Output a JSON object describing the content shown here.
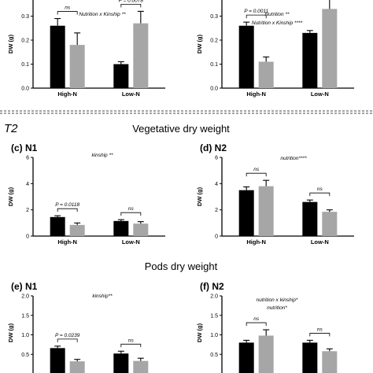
{
  "time_label": "T2",
  "section_titles": [
    "Vegetative dry weight",
    "Pods dry weight"
  ],
  "chart_data": [
    {
      "id": "a",
      "type": "bar",
      "label": "(a) N1",
      "label_visible": false,
      "ylabel": "DW (g)",
      "ylim": [
        0,
        0.4
      ],
      "yticks": [
        "0.0",
        "0.1",
        "0.2",
        "0.3",
        "0.4"
      ],
      "categories": [
        "High-N",
        "Low-N"
      ],
      "series": [
        {
          "color": "#000000",
          "values": [
            0.26,
            0.1
          ],
          "errors": [
            0.03,
            0.01
          ]
        },
        {
          "color": "#a6a6a6",
          "values": [
            0.18,
            0.27
          ],
          "errors": [
            0.05,
            0.05
          ]
        }
      ],
      "stats": [
        "Nutrition x Kinship **"
      ],
      "comparisons": [
        "ns",
        "P = 0.0078"
      ]
    },
    {
      "id": "b",
      "type": "bar",
      "label": "(b) N2",
      "label_visible": false,
      "ylabel": "DW (g)",
      "ylim": [
        0,
        0.4
      ],
      "yticks": [
        "0.0",
        "0.1",
        "0.2",
        "0.3",
        "0.4"
      ],
      "categories": [
        "High-N",
        "Low-N"
      ],
      "series": [
        {
          "color": "#000000",
          "values": [
            0.26,
            0.23
          ],
          "errors": [
            0.015,
            0.01
          ]
        },
        {
          "color": "#a6a6a6",
          "values": [
            0.11,
            0.33
          ],
          "errors": [
            0.02,
            0.05
          ]
        }
      ],
      "stats": [
        "Nutrition **",
        "Nutrition x Kinship ****"
      ],
      "comparisons": [
        "P = 0.0011",
        "P = 0.0358"
      ]
    },
    {
      "id": "c",
      "type": "bar",
      "label": "(c) N1",
      "ylabel": "DW (g)",
      "ylim": [
        0,
        6
      ],
      "yticks": [
        "0",
        "2",
        "4",
        "6"
      ],
      "categories": [
        "High-N",
        "Low-N"
      ],
      "series": [
        {
          "color": "#000000",
          "values": [
            1.45,
            1.15
          ],
          "errors": [
            0.1,
            0.1
          ]
        },
        {
          "color": "#a6a6a6",
          "values": [
            0.85,
            0.95
          ],
          "errors": [
            0.15,
            0.15
          ]
        }
      ],
      "stats": [
        "kinship **"
      ],
      "comparisons": [
        "P = 0.0118",
        "ns"
      ]
    },
    {
      "id": "d",
      "type": "bar",
      "label": "(d) N2",
      "ylabel": "DW (g)",
      "ylim": [
        0,
        6
      ],
      "yticks": [
        "0",
        "2",
        "4",
        "6"
      ],
      "categories": [
        "High-N",
        "Low-N"
      ],
      "series": [
        {
          "color": "#000000",
          "values": [
            3.5,
            2.6
          ],
          "errors": [
            0.25,
            0.15
          ]
        },
        {
          "color": "#a6a6a6",
          "values": [
            3.8,
            1.85
          ],
          "errors": [
            0.45,
            0.15
          ]
        }
      ],
      "stats": [
        "nutrition****"
      ],
      "comparisons": [
        "ns",
        "ns"
      ]
    },
    {
      "id": "e",
      "type": "bar",
      "label": "(e) N1",
      "ylabel": "DW (g)",
      "ylim": [
        0,
        2.0
      ],
      "yticks": [
        "0.5",
        "1.0",
        "1.5",
        "2.0"
      ],
      "categories": [
        "High-N",
        "Low-N"
      ],
      "series": [
        {
          "color": "#000000",
          "values": [
            0.66,
            0.52
          ],
          "errors": [
            0.05,
            0.06
          ]
        },
        {
          "color": "#a6a6a6",
          "values": [
            0.32,
            0.33
          ],
          "errors": [
            0.05,
            0.07
          ]
        }
      ],
      "stats": [
        "kinship**"
      ],
      "comparisons": [
        "P = 0.0239",
        "ns"
      ]
    },
    {
      "id": "f",
      "type": "bar",
      "label": "(f) N2",
      "ylabel": "DW (g)",
      "ylim": [
        0,
        2.0
      ],
      "yticks": [
        "0.5",
        "1.0",
        "1.5",
        "2.0"
      ],
      "categories": [
        "High-N",
        "Low-N"
      ],
      "series": [
        {
          "color": "#000000",
          "values": [
            0.8,
            0.8
          ],
          "errors": [
            0.06,
            0.06
          ]
        },
        {
          "color": "#a6a6a6",
          "values": [
            0.98,
            0.58
          ],
          "errors": [
            0.15,
            0.06
          ]
        }
      ],
      "stats": [
        "nutrition x kinship*",
        "nutrition*"
      ],
      "comparisons": [
        "ns",
        "ns"
      ]
    }
  ]
}
